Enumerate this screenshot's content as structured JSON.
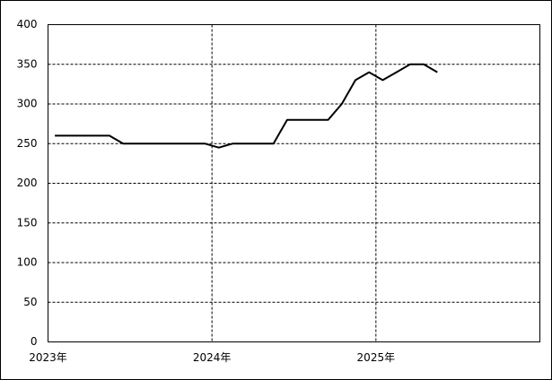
{
  "chart_data": {
    "type": "line",
    "categories": [
      "2023年",
      null,
      null,
      null,
      null,
      null,
      null,
      null,
      null,
      null,
      null,
      null,
      "2024年",
      null,
      null,
      null,
      null,
      null,
      null,
      null,
      null,
      null,
      null,
      null,
      "2025年",
      null,
      null,
      null,
      null,
      null,
      null,
      null,
      null,
      null,
      null,
      null
    ],
    "series": [
      {
        "color": "#000000",
        "values": [
          260,
          260,
          260,
          260,
          260,
          250,
          250,
          250,
          250,
          250,
          250,
          250,
          245,
          250,
          250,
          250,
          250,
          280,
          280,
          280,
          280,
          300,
          330,
          340,
          330,
          340,
          350,
          350,
          340,
          null,
          null,
          null,
          null,
          null,
          null,
          null
        ]
      }
    ],
    "ylim": [
      0,
      400
    ],
    "yticks": [
      0,
      50,
      100,
      150,
      200,
      250,
      300,
      350,
      400
    ],
    "grid": true
  }
}
